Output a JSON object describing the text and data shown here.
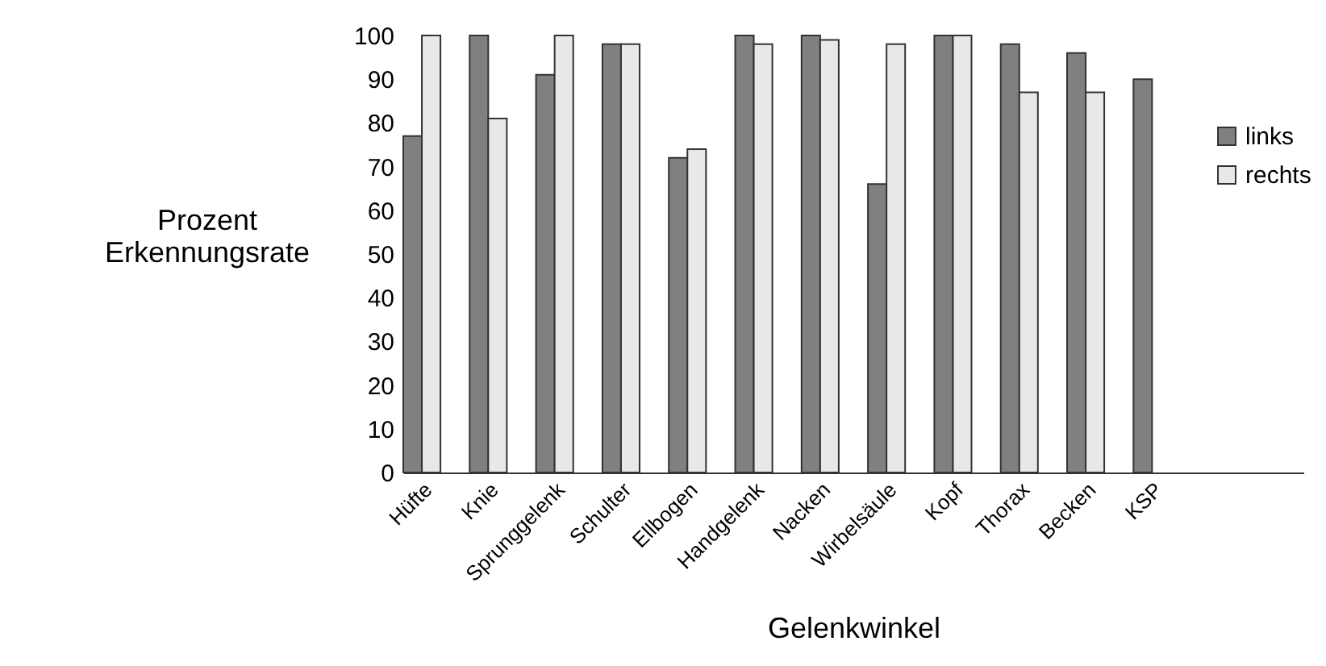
{
  "chart_data": {
    "type": "bar",
    "xlabel": "Gelenkwinkel",
    "ylabel": "Prozent\nErkennungsrate",
    "categories": [
      "Hüfte",
      "Knie",
      "Sprunggelenk",
      "Schulter",
      "Ellbogen",
      "Handgelenk",
      "Nacken",
      "Wirbelsäule",
      "Kopf",
      "Thorax",
      "Becken",
      "KSP",
      null,
      null
    ],
    "series": [
      {
        "name": "links",
        "color": "#808080",
        "values": [
          77,
          100,
          91,
          98,
          72,
          100,
          100,
          66,
          100,
          98,
          96,
          90,
          null,
          null
        ]
      },
      {
        "name": "rechts",
        "color": "#e8e8e8",
        "values": [
          100,
          81,
          100,
          98,
          74,
          98,
          99,
          98,
          100,
          87,
          87,
          null,
          null,
          null
        ]
      }
    ],
    "ylim": [
      0,
      100
    ],
    "yticks": [
      0,
      10,
      20,
      30,
      40,
      50,
      60,
      70,
      80,
      90,
      100
    ],
    "grid": false,
    "legend": "right"
  }
}
